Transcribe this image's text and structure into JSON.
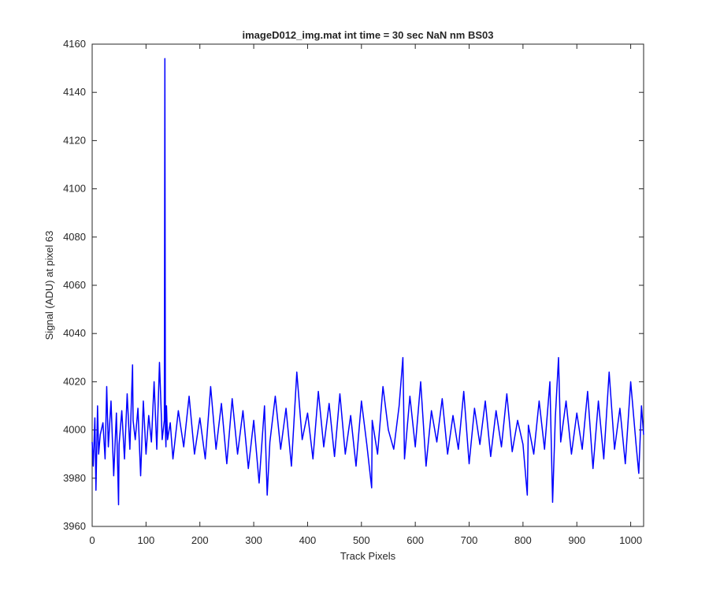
{
  "chart_data": {
    "type": "line",
    "title": "imageD012_img.mat int time = 30 sec  NaN nm BS03",
    "xlabel": "Track Pixels",
    "ylabel": "Signal (ADU) at pixel 63",
    "xlim": [
      0,
      1024
    ],
    "ylim": [
      3960,
      4160
    ],
    "xticks": [
      0,
      100,
      200,
      300,
      400,
      500,
      600,
      700,
      800,
      900,
      1000
    ],
    "yticks": [
      3960,
      3980,
      4000,
      4020,
      4040,
      4060,
      4080,
      4100,
      4120,
      4140,
      4160
    ],
    "grid": false,
    "line_color": "#0000ff",
    "series": [
      {
        "x": [
          0,
          2,
          5,
          7,
          10,
          12,
          15,
          20,
          24,
          27,
          30,
          35,
          40,
          45,
          49,
          50,
          55,
          60,
          65,
          70,
          75,
          76,
          80,
          85,
          90,
          95,
          100,
          105,
          110,
          115,
          120,
          125,
          130,
          134,
          135,
          136,
          137,
          138,
          140,
          145,
          150,
          160,
          170,
          180,
          190,
          200,
          210,
          220,
          230,
          240,
          250,
          260,
          270,
          280,
          290,
          300,
          310,
          320,
          325,
          330,
          340,
          350,
          360,
          370,
          380,
          390,
          400,
          410,
          420,
          430,
          440,
          450,
          460,
          470,
          480,
          490,
          500,
          510,
          519,
          520,
          530,
          540,
          550,
          560,
          570,
          577,
          580,
          590,
          600,
          610,
          620,
          630,
          640,
          650,
          660,
          670,
          680,
          690,
          700,
          710,
          720,
          730,
          740,
          750,
          760,
          770,
          780,
          790,
          800,
          808,
          810,
          820,
          830,
          840,
          850,
          855,
          860,
          866,
          870,
          880,
          890,
          900,
          910,
          920,
          930,
          940,
          950,
          960,
          970,
          980,
          990,
          1000,
          1010,
          1015,
          1020,
          1024
        ],
        "y": [
          3995,
          3985,
          4005,
          3975,
          4010,
          3990,
          3998,
          4003,
          3988,
          4018,
          3993,
          4012,
          3981,
          4007,
          3969,
          3994,
          4008,
          3988,
          4015,
          3992,
          4027,
          4004,
          3996,
          4009,
          3981,
          4012,
          3990,
          4006,
          3995,
          4020,
          3992,
          4028,
          3996,
          4004,
          4154,
          4000,
          3993,
          4010,
          3996,
          4003,
          3988,
          4008,
          3993,
          4014,
          3990,
          4005,
          3988,
          4018,
          3992,
          4011,
          3986,
          4013,
          3990,
          4008,
          3984,
          4004,
          3978,
          4010,
          3973,
          3995,
          4014,
          3992,
          4009,
          3985,
          4024,
          3996,
          4007,
          3988,
          4016,
          3993,
          4011,
          3989,
          4015,
          3990,
          4006,
          3985,
          4012,
          3994,
          3976,
          4004,
          3990,
          4018,
          4000,
          3992,
          4010,
          4030,
          3988,
          4014,
          3993,
          4020,
          3985,
          4008,
          3995,
          4013,
          3990,
          4006,
          3992,
          4016,
          3986,
          4009,
          3994,
          4012,
          3989,
          4008,
          3993,
          4015,
          3991,
          4004,
          3994,
          3973,
          4002,
          3990,
          4012,
          3992,
          4020,
          3970,
          4005,
          4030,
          3995,
          4012,
          3990,
          4007,
          3992,
          4016,
          3984,
          4012,
          3988,
          4024,
          3992,
          4009,
          3986,
          4020,
          3994,
          3982,
          4010,
          3998
        ]
      }
    ]
  }
}
